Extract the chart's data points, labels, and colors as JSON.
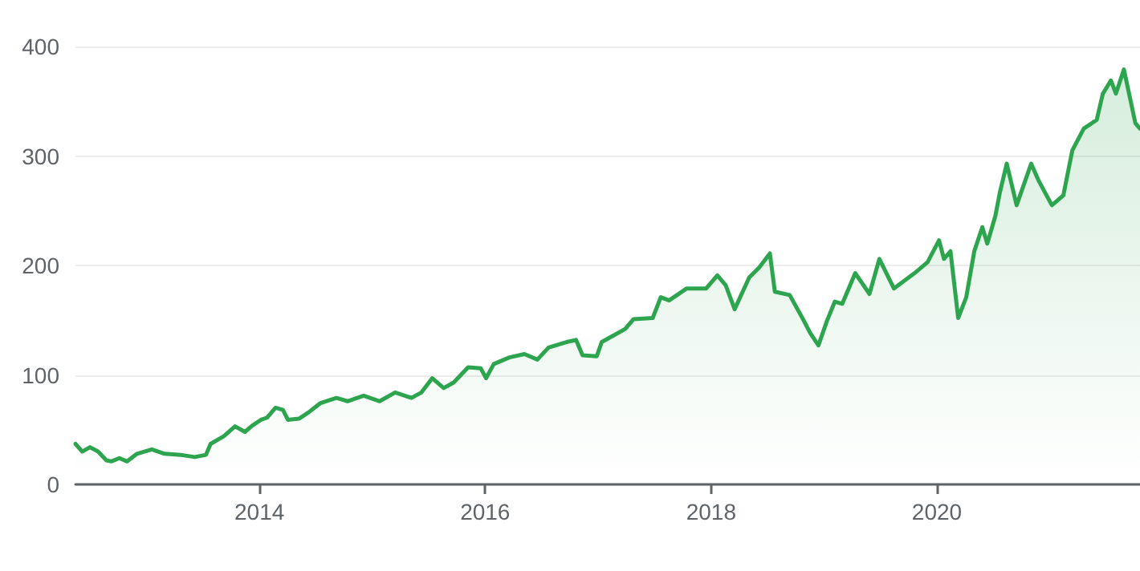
{
  "chart_data": {
    "type": "area",
    "x": [
      "2012-05-16",
      "2012-06-07",
      "2012-07-02",
      "2012-07-28",
      "2012-08-24",
      "2012-09-09",
      "2012-10-05",
      "2012-10-30",
      "2012-12-01",
      "2013-01-18",
      "2013-02-28",
      "2013-04-20",
      "2013-06-06",
      "2013-07-12",
      "2013-07-27",
      "2013-09-08",
      "2013-10-14",
      "2013-11-15",
      "2013-12-10",
      "2014-01-06",
      "2014-01-26",
      "2014-02-22",
      "2014-03-18",
      "2014-04-03",
      "2014-05-09",
      "2014-06-10",
      "2014-07-16",
      "2014-09-07",
      "2014-10-13",
      "2014-12-04",
      "2015-01-25",
      "2015-03-16",
      "2015-05-08",
      "2015-06-09",
      "2015-07-14",
      "2015-08-20",
      "2015-09-21",
      "2015-11-07",
      "2015-12-18",
      "2016-01-04",
      "2016-01-29",
      "2016-03-20",
      "2016-05-07",
      "2016-06-18",
      "2016-07-24",
      "2016-09-20",
      "2016-10-21",
      "2016-11-11",
      "2016-12-27",
      "2017-01-12",
      "2017-03-29",
      "2017-04-25",
      "2017-06-26",
      "2017-07-22",
      "2017-08-18",
      "2017-10-14",
      "2017-12-16",
      "2018-01-21",
      "2018-02-17",
      "2018-03-18",
      "2018-05-04",
      "2018-06-05",
      "2018-07-10",
      "2018-07-26",
      "2018-09-12",
      "2018-10-23",
      "2018-11-18",
      "2018-12-14",
      "2019-01-10",
      "2019-02-05",
      "2019-03-01",
      "2019-04-12",
      "2019-05-28",
      "2019-06-29",
      "2019-08-15",
      "2019-10-21",
      "2019-12-02",
      "2020-01-08",
      "2020-01-24",
      "2020-02-14",
      "2020-03-10",
      "2020-04-05",
      "2020-05-01",
      "2020-05-27",
      "2020-06-12",
      "2020-07-08",
      "2020-07-23",
      "2020-08-14",
      "2020-09-15",
      "2020-11-01",
      "2020-11-26",
      "2021-01-07",
      "2021-02-13",
      "2021-03-14",
      "2021-04-20",
      "2021-06-01",
      "2021-06-21",
      "2021-07-17",
      "2021-08-02",
      "2021-08-28",
      "2021-10-04",
      "2021-10-19"
    ],
    "series": [
      {
        "color": "#2da44e",
        "values": [
          37,
          30,
          34,
          30,
          22,
          21,
          24,
          21,
          28,
          32,
          28,
          27,
          25,
          27,
          37,
          44,
          53,
          48,
          54,
          59,
          61,
          70,
          68,
          59,
          60,
          66,
          74,
          79,
          76,
          81,
          76,
          84,
          79,
          84,
          97,
          88,
          93,
          107,
          106,
          97,
          110,
          116,
          119,
          114,
          125,
          130,
          132,
          118,
          117,
          130,
          142,
          151,
          152,
          171,
          168,
          179,
          179,
          191,
          182,
          160,
          189,
          198,
          211,
          176,
          173,
          152,
          138,
          127,
          149,
          167,
          165,
          193,
          174,
          206,
          179,
          193,
          203,
          223,
          206,
          213,
          152,
          171,
          213,
          235,
          220,
          245,
          267,
          293,
          255,
          293,
          277,
          255,
          264,
          305,
          325,
          333,
          357,
          369,
          357,
          379,
          330,
          325
        ]
      }
    ],
    "xlim": [
      "2012-05-16",
      "2021-10-19"
    ],
    "xticks": [
      "2014",
      "2016",
      "2018",
      "2020"
    ],
    "ylim": [
      0,
      400
    ],
    "yticks": [
      0,
      100,
      200,
      300,
      400
    ],
    "grid": "y",
    "marker": "none",
    "line_style": "solid"
  }
}
